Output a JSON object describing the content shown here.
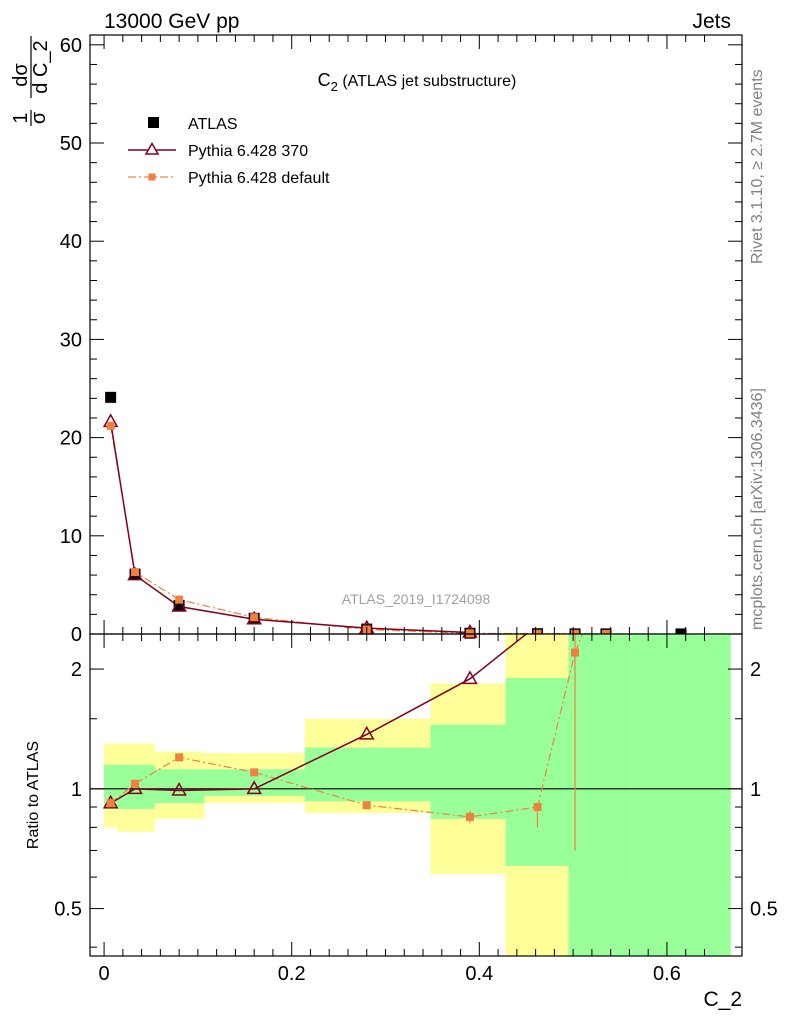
{
  "header": {
    "left": "13000 GeV pp",
    "right": "Jets"
  },
  "side_labels": {
    "rivet": "Rivet 3.1.10, ≥ 2.7M events",
    "mcplots": "mcplots.cern.ch [arXiv:1306.3436]"
  },
  "watermark": "ATLAS_2019_I1724098",
  "chart_data": [
    {
      "type": "scatter",
      "title": "C₂ (ATLAS jet substructure)",
      "title_main": "C",
      "title_sub": "2",
      "title_rest": " (ATLAS jet substructure)",
      "ylabel": "dσ/dC_2 · 1/σ",
      "ylabel_parts": {
        "n1": "1",
        "d1": "σ",
        "n2": "dσ",
        "d2": "d C_2"
      },
      "xlabel": "C_2",
      "xlim": [
        -0.015,
        0.68
      ],
      "ylim": [
        0,
        61
      ],
      "yticks": [
        0,
        10,
        20,
        30,
        40,
        50,
        60
      ],
      "ytick_labels": [
        "0",
        "10",
        "20",
        "30",
        "40",
        "50",
        "60"
      ],
      "legend": {
        "placement": "top-left",
        "entries": [
          "ATLAS",
          "Pythia 6.428 370",
          "Pythia 6.428 default"
        ]
      },
      "series": [
        {
          "name": "ATLAS",
          "color": "#000000",
          "marker": "square",
          "x": [
            0.007,
            0.033,
            0.08,
            0.16,
            0.28,
            0.39,
            0.462,
            0.502,
            0.535,
            0.615
          ],
          "y": [
            24.1,
            6.1,
            2.9,
            1.6,
            0.5,
            0.08,
            0.03,
            0.01,
            0.01,
            0.01
          ]
        },
        {
          "name": "Pythia 6.428 370",
          "color": "#800020",
          "marker": "triangle-open",
          "line": "solid",
          "x": [
            0.007,
            0.033,
            0.08,
            0.16,
            0.28,
            0.39
          ],
          "y": [
            21.6,
            6.0,
            2.8,
            1.5,
            0.6,
            0.15
          ]
        },
        {
          "name": "Pythia 6.428 default",
          "color": "#f08040",
          "marker": "square-small",
          "line": "dashdot",
          "x": [
            0.007,
            0.033,
            0.08,
            0.16,
            0.28,
            0.39,
            0.462,
            0.502,
            0.535
          ],
          "y": [
            21.2,
            6.3,
            3.5,
            1.7,
            0.45,
            0.07,
            0.03,
            0.02,
            0.01
          ]
        }
      ]
    },
    {
      "type": "scatter",
      "ylabel": "Ratio to ATLAS",
      "xlabel": "C_2",
      "xlim": [
        -0.015,
        0.68
      ],
      "ylim": [
        0.38,
        2.45
      ],
      "yscale": "log",
      "xticks": [
        0,
        0.2,
        0.4,
        0.6
      ],
      "xtick_labels": [
        "0",
        "0.2",
        "0.4",
        "0.6"
      ],
      "yticks": [
        0.5,
        1,
        2
      ],
      "ytick_labels": [
        "0.5",
        "1",
        "2"
      ],
      "reference_line": 1,
      "uncertainty_bands": [
        {
          "x0": 0.0,
          "x1": 0.014,
          "green": [
            0.89,
            1.15
          ],
          "yellow": [
            0.8,
            1.3
          ]
        },
        {
          "x0": 0.014,
          "x1": 0.054,
          "green": [
            0.89,
            1.15
          ],
          "yellow": [
            0.78,
            1.3
          ]
        },
        {
          "x0": 0.054,
          "x1": 0.107,
          "green": [
            0.92,
            1.12
          ],
          "yellow": [
            0.84,
            1.24
          ]
        },
        {
          "x0": 0.107,
          "x1": 0.214,
          "green": [
            0.96,
            1.12
          ],
          "yellow": [
            0.92,
            1.23
          ]
        },
        {
          "x0": 0.214,
          "x1": 0.348,
          "green": [
            0.93,
            1.27
          ],
          "yellow": [
            0.87,
            1.5
          ]
        },
        {
          "x0": 0.348,
          "x1": 0.428,
          "green": [
            0.84,
            1.45
          ],
          "yellow": [
            0.61,
            1.84
          ]
        },
        {
          "x0": 0.428,
          "x1": 0.495,
          "green": [
            0.64,
            1.9
          ],
          "yellow": [
            0.0,
            3.0
          ]
        },
        {
          "x0": 0.495,
          "x1": 0.508,
          "green": [
            0.35,
            3.0
          ],
          "yellow": [
            0.0,
            3.0
          ]
        },
        {
          "x0": 0.508,
          "x1": 0.562,
          "green": [
            0.0,
            3.0
          ],
          "yellow": [
            0.0,
            0.58
          ]
        },
        {
          "x0": 0.562,
          "x1": 0.668,
          "green": [
            0.0,
            3.0
          ],
          "yellow": [
            0.0,
            0.0
          ]
        }
      ],
      "series": [
        {
          "name": "Pythia 6.428 370",
          "color": "#800020",
          "marker": "triangle-open",
          "line": "solid",
          "x": [
            0.007,
            0.033,
            0.08,
            0.16,
            0.28,
            0.39,
            0.45
          ],
          "y": [
            0.92,
            1.0,
            0.99,
            1.0,
            1.37,
            1.89,
            2.45
          ]
        },
        {
          "name": "Pythia 6.428 default",
          "color": "#f08040",
          "marker": "square-small",
          "line": "dashdot",
          "x": [
            0.007,
            0.033,
            0.08,
            0.16,
            0.28,
            0.39,
            0.462,
            0.502,
            0.51
          ],
          "y": [
            0.92,
            1.03,
            1.2,
            1.1,
            0.91,
            0.85,
            0.9,
            2.2,
            2.45
          ],
          "yerr_lo": [
            0.02,
            0.01,
            0.01,
            0.01,
            0.01,
            0.03,
            0.1,
            1.5,
            0
          ],
          "yerr_hi": [
            0.02,
            0.01,
            0.01,
            0.01,
            0.01,
            0.03,
            0.0,
            0.25,
            0
          ]
        }
      ]
    }
  ]
}
